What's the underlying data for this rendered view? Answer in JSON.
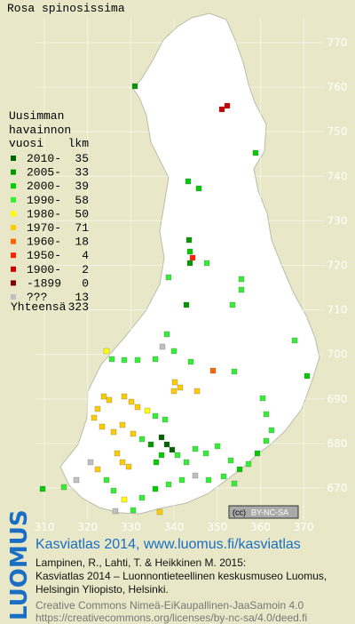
{
  "title": "Rosa spinosissima",
  "legend": {
    "heading": [
      "Uusimman",
      "havainnon"
    ],
    "year_header": "vuosi",
    "count_header": "lkm",
    "rows": [
      {
        "label": "2010-",
        "count": 35,
        "color": "#006400"
      },
      {
        "label": "2005-",
        "count": 33,
        "color": "#009900"
      },
      {
        "label": "2000-",
        "count": 39,
        "color": "#00cc00"
      },
      {
        "label": "1990-",
        "count": 58,
        "color": "#33ee33"
      },
      {
        "label": "1980-",
        "count": 50,
        "color": "#ffff00"
      },
      {
        "label": "1970-",
        "count": 71,
        "color": "#ffcc00"
      },
      {
        "label": "1960-",
        "count": 18,
        "color": "#ff6600"
      },
      {
        "label": "1950-",
        "count": 4,
        "color": "#ff2200"
      },
      {
        "label": "1900-",
        "count": 2,
        "color": "#cc0000"
      },
      {
        "label": "-1899",
        "count": 0,
        "color": "#800000"
      },
      {
        "label": "???",
        "count": 13,
        "color": "#c0c0c0"
      }
    ],
    "total_label": "Yhteensä",
    "total": 323
  },
  "x_ticks": [
    310,
    320,
    330,
    340,
    350,
    360,
    370
  ],
  "y_ticks": [
    670,
    680,
    690,
    700,
    710,
    720,
    730,
    740,
    750,
    760,
    770
  ],
  "license_badge": {
    "cc": "(cc)",
    "terms": "BY-NC-SA"
  },
  "logo": "LUOMUS",
  "footer": {
    "headline": "Kasviatlas 2014, www.luomus.fi/kasviatlas",
    "citation": [
      "Lampinen, R., Lahti, T. & Heikkinen M. 2015:",
      "Kasviatlas 2014 – Luonnontieteellinen keskusmuseo Luomus,",
      "Helsingin Yliopisto, Helsinki."
    ],
    "license": [
      "Creative Commons Nimeä-EiKaupallinen-JaaSamoin 4.0",
      "https://creativecommons.org/licenses/by-nc-sa/4.0/deed.fi"
    ]
  }
}
